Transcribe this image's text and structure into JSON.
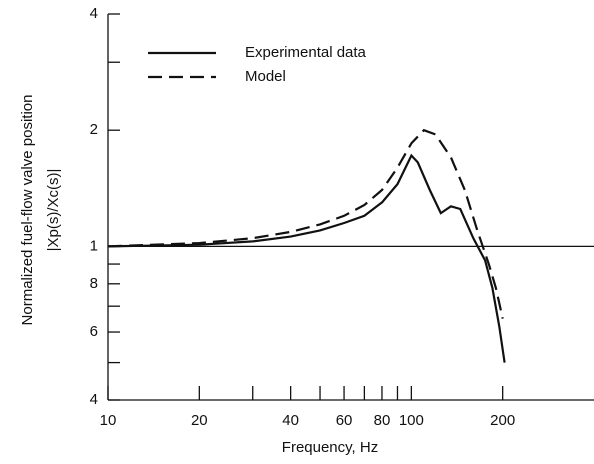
{
  "chart_data": {
    "type": "line",
    "y_label": [
      "Normalized fuel-flow valve position",
      "|Xp(s)/Xc(s)|"
    ],
    "x_label": "Frequency, Hz",
    "xscale": "log",
    "yscale": "log",
    "xlim": [
      10,
      400
    ],
    "ylim": [
      0.4,
      4
    ],
    "xticks": [
      10,
      20,
      40,
      60,
      80,
      100,
      200
    ],
    "xminorticks": [
      30,
      50,
      70,
      90
    ],
    "yticks": [
      4,
      2,
      1,
      {
        "value": 0.8,
        "label": "8"
      },
      {
        "value": 0.6,
        "label": "6"
      },
      {
        "value": 0.4,
        "label": "4"
      }
    ],
    "yminorticks": [
      3,
      0.9,
      0.7,
      0.5
    ],
    "hline": 1,
    "legend": "top-left",
    "series": [
      {
        "name": "Experimental data",
        "color": "#111111",
        "dash": "solid",
        "x": [
          10,
          20,
          30,
          40,
          50,
          60,
          70,
          80,
          90,
          100,
          105,
          115,
          125,
          135,
          145,
          160,
          175,
          185,
          195,
          203
        ],
        "values": [
          1.0,
          1.01,
          1.03,
          1.06,
          1.1,
          1.15,
          1.2,
          1.3,
          1.45,
          1.72,
          1.65,
          1.4,
          1.22,
          1.27,
          1.25,
          1.05,
          0.92,
          0.78,
          0.62,
          0.5
        ]
      },
      {
        "name": "Model",
        "color": "#111111",
        "dash": "dashed",
        "x": [
          10,
          20,
          30,
          40,
          50,
          60,
          70,
          80,
          90,
          100,
          110,
          120,
          135,
          150,
          165,
          180,
          190,
          200
        ],
        "values": [
          1.0,
          1.02,
          1.05,
          1.09,
          1.14,
          1.2,
          1.28,
          1.4,
          1.6,
          1.85,
          2.0,
          1.95,
          1.7,
          1.4,
          1.1,
          0.9,
          0.78,
          0.65
        ]
      }
    ]
  }
}
